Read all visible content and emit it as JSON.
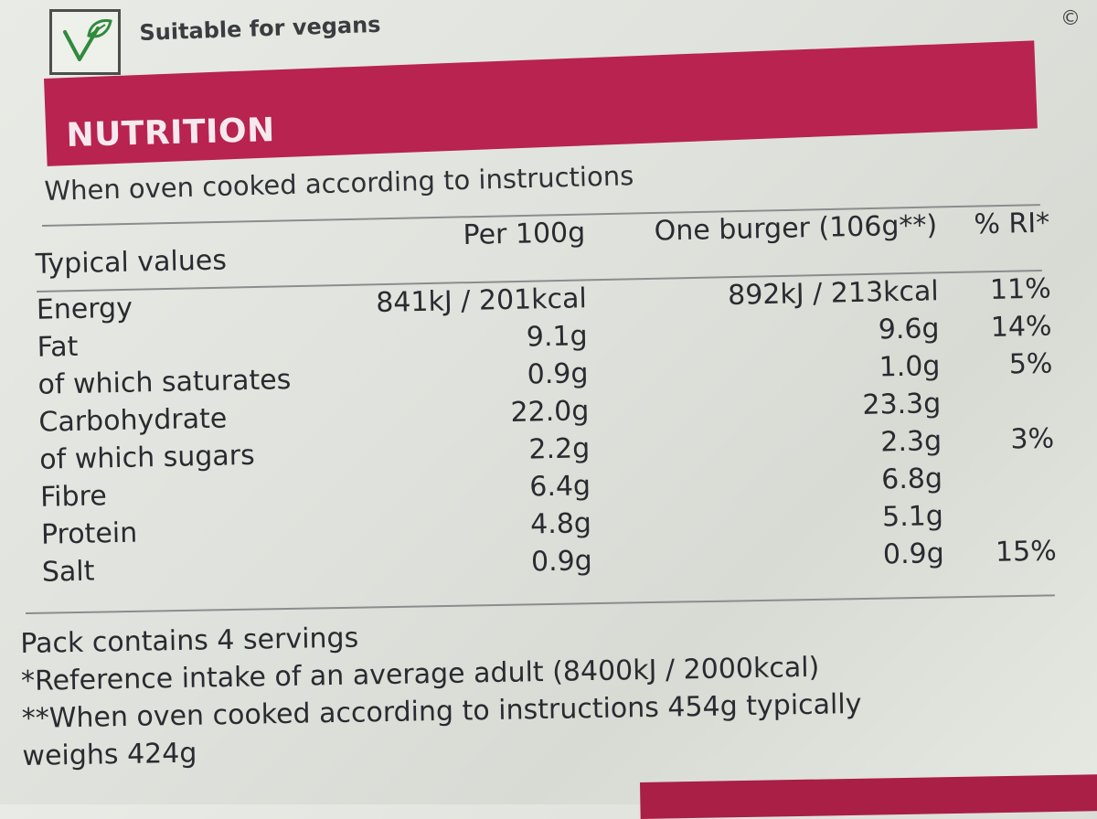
{
  "vegan": {
    "icon": "vegan-v-leaf-icon",
    "label": "Suitable for vegans"
  },
  "copyright_symbol": "©",
  "nutrition": {
    "title": "NUTRITION",
    "band_color": "#b8234f",
    "intro": "When oven cooked according to instructions",
    "headers": {
      "label": "Typical values",
      "per100g": "Per 100g",
      "per_burger": "One burger (106g**)",
      "ri": "% RI*"
    },
    "rows": [
      {
        "label": "Energy",
        "per100g": "841kJ / 201kcal",
        "per_burger": "892kJ / 213kcal",
        "ri": "11%"
      },
      {
        "label": "Fat",
        "per100g": "9.1g",
        "per_burger": "9.6g",
        "ri": "14%"
      },
      {
        "label": "of which saturates",
        "per100g": "0.9g",
        "per_burger": "1.0g",
        "ri": "5%"
      },
      {
        "label": "Carbohydrate",
        "per100g": "22.0g",
        "per_burger": "23.3g",
        "ri": ""
      },
      {
        "label": "of which sugars",
        "per100g": "2.2g",
        "per_burger": "2.3g",
        "ri": "3%"
      },
      {
        "label": "Fibre",
        "per100g": "6.4g",
        "per_burger": "6.8g",
        "ri": ""
      },
      {
        "label": "Protein",
        "per100g": "4.8g",
        "per_burger": "5.1g",
        "ri": ""
      },
      {
        "label": "Salt",
        "per100g": "0.9g",
        "per_burger": "0.9g",
        "ri": "15%"
      }
    ]
  },
  "footer": {
    "servings": "Pack contains 4 servings",
    "ri_note": "*Reference intake of an average adult (8400kJ / 2000kcal)",
    "weight_note_1": "**When oven cooked according to instructions 454g typically",
    "weight_note_2": "weighs 424g"
  }
}
